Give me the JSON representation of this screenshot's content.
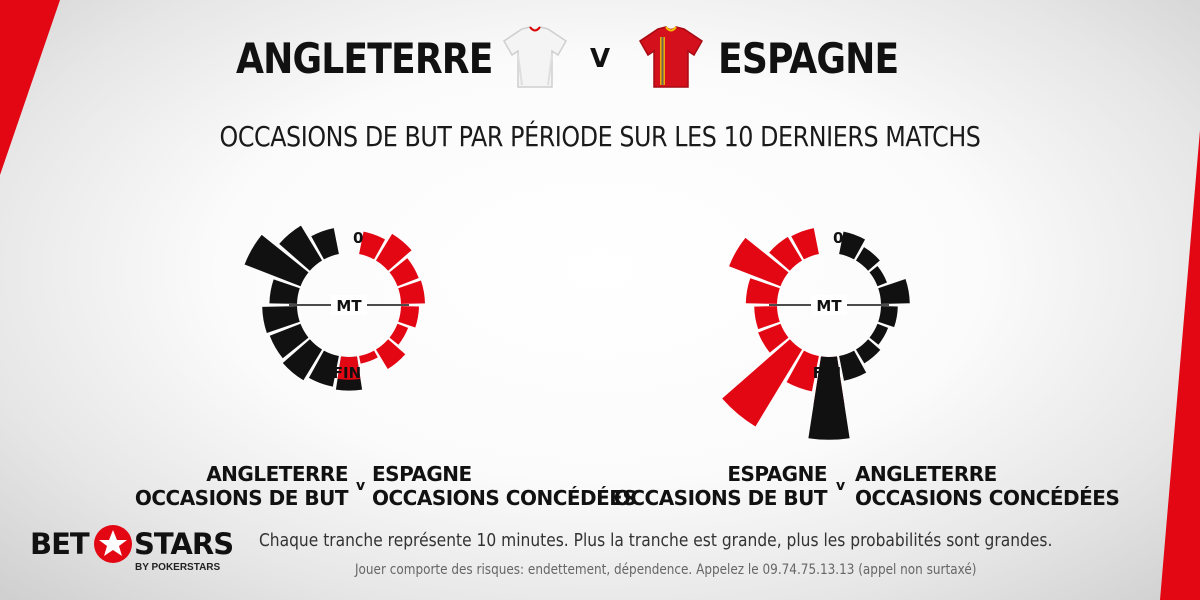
{
  "header": {
    "team_left": "ANGLETERRE",
    "vs": "V",
    "team_right": "ESPAGNE",
    "subtitle": "OCCASIONS DE BUT PAR PÉRIODE SUR LES 10 DERNIERS MATCHS"
  },
  "colors": {
    "red": "#e30613",
    "black": "#111111",
    "accent_corner": "#e30613"
  },
  "chart_data": [
    {
      "type": "radial-bar",
      "center_labels": {
        "start": "0",
        "half": "MT",
        "end": "FIN"
      },
      "unit": "relative slice size (10-minute bins)",
      "series": [
        {
          "name": "ANGLETERRE OCCASIONS DE BUT",
          "side": "left",
          "color": "#111111",
          "values": [
            0.44,
            0.68,
            1.0,
            0.46,
            0.58,
            0.55,
            0.6,
            0.52,
            0.56
          ]
        },
        {
          "name": "ESPAGNE OCCASIONS CONCÉDÉES",
          "side": "right",
          "color": "#e30613",
          "values": [
            0.38,
            0.52,
            0.38,
            0.4,
            0.3,
            0.19,
            0.38,
            0.13,
            0.38
          ]
        }
      ],
      "labels": {
        "left_line1": "ANGLETERRE",
        "left_line2": "OCCASIONS DE BUT",
        "v": "v",
        "right_line1": "ESPAGNE",
        "right_line2": "OCCASIONS CONCÉDÉES"
      }
    },
    {
      "type": "radial-bar",
      "center_labels": {
        "start": "0",
        "half": "MT",
        "end": "FIN"
      },
      "unit": "relative slice size (10-minute bins)",
      "series": [
        {
          "name": "ESPAGNE OCCASIONS DE BUT",
          "side": "left",
          "color": "#e30613",
          "values": [
            0.44,
            0.46,
            0.92,
            0.52,
            0.38,
            0.4,
            1.5,
            0.6,
            0.82
          ]
        },
        {
          "name": "ANGLETERRE OCCASIONS CONCÉDÉES",
          "side": "right",
          "color": "#111111",
          "values": [
            0.38,
            0.26,
            0.17,
            0.48,
            0.28,
            0.19,
            0.27,
            0.42,
            1.38
          ]
        }
      ],
      "labels": {
        "left_line1": "ESPAGNE",
        "left_line2": "OCCASIONS DE BUT",
        "v": "v",
        "right_line1": "ANGLETERRE",
        "right_line2": "OCCASIONS CONCÉDÉES"
      }
    }
  ],
  "footer": {
    "logo_bet": "BET",
    "logo_stars": "STARS",
    "logo_sub": "BY POKERSTARS",
    "note": "Chaque tranche représente 10 minutes. Plus la tranche est grande, plus les probabilités sont grandes.",
    "disclaimer": "Jouer comporte des risques: endettement, dépendence. Appelez le 09.74.75.13.13 (appel non surtaxé)"
  },
  "icons": [
    "england-shirt-icon",
    "spain-shirt-icon",
    "star-logo-icon"
  ]
}
